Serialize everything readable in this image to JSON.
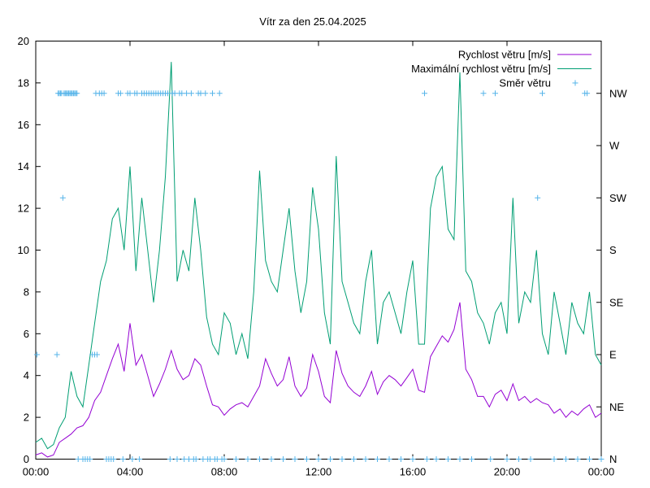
{
  "chart_data": {
    "type": "line",
    "title": "Vítr za den 25.04.2025",
    "x_range_hours": [
      0,
      24
    ],
    "x_ticks": [
      {
        "hour": 0,
        "label": "00:00"
      },
      {
        "hour": 4,
        "label": "04:00"
      },
      {
        "hour": 8,
        "label": "08:00"
      },
      {
        "hour": 12,
        "label": "12:00"
      },
      {
        "hour": 16,
        "label": "16:00"
      },
      {
        "hour": 20,
        "label": "20:00"
      },
      {
        "hour": 24,
        "label": "00:00"
      }
    ],
    "y_left": {
      "range": [
        0,
        20
      ],
      "ticks": [
        0,
        2,
        4,
        6,
        8,
        10,
        12,
        14,
        16,
        18,
        20
      ]
    },
    "y_right": {
      "range": [
        0,
        360
      ],
      "ticks": [
        {
          "deg": 0,
          "label": "N"
        },
        {
          "deg": 45,
          "label": "NE"
        },
        {
          "deg": 90,
          "label": "E"
        },
        {
          "deg": 135,
          "label": "SE"
        },
        {
          "deg": 180,
          "label": "S"
        },
        {
          "deg": 225,
          "label": "SW"
        },
        {
          "deg": 270,
          "label": "W"
        },
        {
          "deg": 315,
          "label": "NW"
        }
      ]
    },
    "grid": false,
    "legend_position": "top-right",
    "series": [
      {
        "name": "Rychlost větru [m/s]",
        "color": "#9400d3",
        "axis": "left",
        "x": [
          0.0,
          0.25,
          0.5,
          0.75,
          1.0,
          1.25,
          1.5,
          1.75,
          2.0,
          2.25,
          2.5,
          2.75,
          3.0,
          3.25,
          3.5,
          3.75,
          4.0,
          4.25,
          4.5,
          4.75,
          5.0,
          5.25,
          5.5,
          5.75,
          6.0,
          6.25,
          6.5,
          6.75,
          7.0,
          7.25,
          7.5,
          7.75,
          8.0,
          8.25,
          8.5,
          8.75,
          9.0,
          9.25,
          9.5,
          9.75,
          10.0,
          10.25,
          10.5,
          10.75,
          11.0,
          11.25,
          11.5,
          11.75,
          12.0,
          12.25,
          12.5,
          12.75,
          13.0,
          13.25,
          13.5,
          13.75,
          14.0,
          14.25,
          14.5,
          14.75,
          15.0,
          15.25,
          15.5,
          15.75,
          16.0,
          16.25,
          16.5,
          16.75,
          17.0,
          17.25,
          17.5,
          17.75,
          18.0,
          18.25,
          18.5,
          18.75,
          19.0,
          19.25,
          19.5,
          19.75,
          20.0,
          20.25,
          20.5,
          20.75,
          21.0,
          21.25,
          21.5,
          21.75,
          22.0,
          22.25,
          22.5,
          22.75,
          23.0,
          23.25,
          23.5,
          23.75,
          24.0
        ],
        "y": [
          0.2,
          0.3,
          0.1,
          0.2,
          0.8,
          1.0,
          1.2,
          1.5,
          1.6,
          2.0,
          2.8,
          3.2,
          4.0,
          4.8,
          5.5,
          4.2,
          6.5,
          4.5,
          5.0,
          4.0,
          3.0,
          3.6,
          4.3,
          5.2,
          4.3,
          3.8,
          4.0,
          4.8,
          4.5,
          3.5,
          2.6,
          2.5,
          2.1,
          2.4,
          2.6,
          2.7,
          2.5,
          3.0,
          3.5,
          4.8,
          4.1,
          3.5,
          3.8,
          4.9,
          3.5,
          3.0,
          3.4,
          5.0,
          4.2,
          3.0,
          2.7,
          5.2,
          4.1,
          3.5,
          3.2,
          3.0,
          3.5,
          4.2,
          3.1,
          3.7,
          4.0,
          3.8,
          3.5,
          3.9,
          4.3,
          3.3,
          3.2,
          4.9,
          5.4,
          5.9,
          5.6,
          6.2,
          7.5,
          4.3,
          3.8,
          3.0,
          3.0,
          2.5,
          3.1,
          3.3,
          2.8,
          3.6,
          2.8,
          3.0,
          2.7,
          2.9,
          2.7,
          2.6,
          2.2,
          2.4,
          2.0,
          2.3,
          2.1,
          2.4,
          2.6,
          2.0,
          2.2
        ]
      },
      {
        "name": "Maximální rychlost větru [m/s]",
        "color": "#009e73",
        "axis": "left",
        "x": [
          0.0,
          0.25,
          0.5,
          0.75,
          1.0,
          1.25,
          1.5,
          1.75,
          2.0,
          2.25,
          2.5,
          2.75,
          3.0,
          3.25,
          3.5,
          3.75,
          4.0,
          4.25,
          4.5,
          4.75,
          5.0,
          5.25,
          5.5,
          5.75,
          6.0,
          6.25,
          6.5,
          6.75,
          7.0,
          7.25,
          7.5,
          7.75,
          8.0,
          8.25,
          8.5,
          8.75,
          9.0,
          9.25,
          9.5,
          9.75,
          10.0,
          10.25,
          10.5,
          10.75,
          11.0,
          11.25,
          11.5,
          11.75,
          12.0,
          12.25,
          12.5,
          12.75,
          13.0,
          13.25,
          13.5,
          13.75,
          14.0,
          14.25,
          14.5,
          14.75,
          15.0,
          15.25,
          15.5,
          15.75,
          16.0,
          16.25,
          16.5,
          16.75,
          17.0,
          17.25,
          17.5,
          17.75,
          18.0,
          18.25,
          18.5,
          18.75,
          19.0,
          19.25,
          19.5,
          19.75,
          20.0,
          20.25,
          20.5,
          20.75,
          21.0,
          21.25,
          21.5,
          21.75,
          22.0,
          22.25,
          22.5,
          22.75,
          23.0,
          23.25,
          23.5,
          23.75,
          24.0
        ],
        "y": [
          0.8,
          1.0,
          0.5,
          0.7,
          1.5,
          2.0,
          4.2,
          3.0,
          2.5,
          4.5,
          6.5,
          8.5,
          9.5,
          11.5,
          12.0,
          10.0,
          14.0,
          9.0,
          12.5,
          10.0,
          7.5,
          10.0,
          13.5,
          19.0,
          8.5,
          10.0,
          9.0,
          12.5,
          10.0,
          6.8,
          5.5,
          5.0,
          7.0,
          6.5,
          5.0,
          6.0,
          4.8,
          8.0,
          13.8,
          9.5,
          8.5,
          8.0,
          10.0,
          12.0,
          9.0,
          7.0,
          8.5,
          13.0,
          11.0,
          7.0,
          5.5,
          14.5,
          8.5,
          7.5,
          6.5,
          6.0,
          8.5,
          10.0,
          5.5,
          7.5,
          8.0,
          7.0,
          6.0,
          8.0,
          9.5,
          5.5,
          5.5,
          12.0,
          13.5,
          14.0,
          11.0,
          10.5,
          18.5,
          9.0,
          8.5,
          7.0,
          6.5,
          5.5,
          7.0,
          7.5,
          6.0,
          12.5,
          6.5,
          8.0,
          7.5,
          10.0,
          6.0,
          5.0,
          8.0,
          6.5,
          5.0,
          7.5,
          6.5,
          6.0,
          8.0,
          5.0,
          4.5
        ]
      },
      {
        "name": "Směr větru",
        "color": "#56b4e9",
        "axis": "right",
        "marker": "plus",
        "x": [
          0.05,
          0.9,
          0.95,
          1.0,
          1.05,
          1.1,
          1.15,
          1.2,
          1.25,
          1.3,
          1.35,
          1.4,
          1.45,
          1.5,
          1.55,
          1.6,
          1.65,
          1.7,
          1.75,
          1.8,
          2.0,
          2.1,
          2.2,
          2.3,
          2.4,
          2.5,
          2.55,
          2.6,
          2.7,
          2.8,
          2.9,
          3.0,
          3.1,
          3.2,
          3.3,
          3.5,
          3.6,
          3.7,
          3.9,
          4.0,
          4.1,
          4.2,
          4.3,
          4.4,
          4.5,
          4.6,
          4.7,
          4.8,
          4.9,
          5.0,
          5.1,
          5.2,
          5.3,
          5.4,
          5.5,
          5.6,
          5.7,
          5.8,
          5.9,
          6.0,
          6.1,
          6.2,
          6.3,
          6.4,
          6.5,
          6.6,
          6.7,
          6.8,
          6.9,
          7.0,
          7.1,
          7.2,
          7.3,
          7.4,
          7.5,
          7.6,
          7.7,
          7.8,
          7.9,
          8.0,
          8.5,
          9.0,
          9.5,
          10.0,
          10.5,
          11.0,
          11.5,
          12.0,
          12.5,
          13.0,
          13.5,
          14.0,
          14.5,
          15.0,
          15.5,
          16.0,
          16.5,
          16.6,
          17.0,
          17.5,
          18.0,
          18.5,
          19.0,
          19.3,
          19.5,
          20.0,
          20.5,
          21.0,
          21.3,
          21.5,
          22.0,
          22.5,
          23.0,
          23.3,
          23.4,
          23.5,
          24.0
        ],
        "y": [
          90,
          90,
          315,
          315,
          315,
          315,
          225,
          315,
          315,
          315,
          315,
          315,
          315,
          315,
          315,
          315,
          315,
          315,
          315,
          0,
          0,
          0,
          0,
          0,
          90,
          90,
          315,
          90,
          315,
          315,
          315,
          0,
          0,
          0,
          0,
          315,
          315,
          0,
          315,
          315,
          0,
          315,
          315,
          0,
          315,
          315,
          315,
          315,
          315,
          315,
          315,
          315,
          315,
          315,
          315,
          315,
          0,
          315,
          315,
          0,
          315,
          315,
          0,
          315,
          0,
          315,
          0,
          0,
          315,
          315,
          0,
          315,
          0,
          0,
          315,
          0,
          0,
          315,
          0,
          0,
          0,
          0,
          0,
          0,
          0,
          0,
          0,
          0,
          0,
          0,
          0,
          0,
          0,
          0,
          0,
          0,
          315,
          0,
          0,
          0,
          0,
          0,
          315,
          0,
          315,
          0,
          0,
          0,
          225,
          315,
          0,
          0,
          0,
          315,
          315,
          0,
          0
        ]
      }
    ]
  }
}
